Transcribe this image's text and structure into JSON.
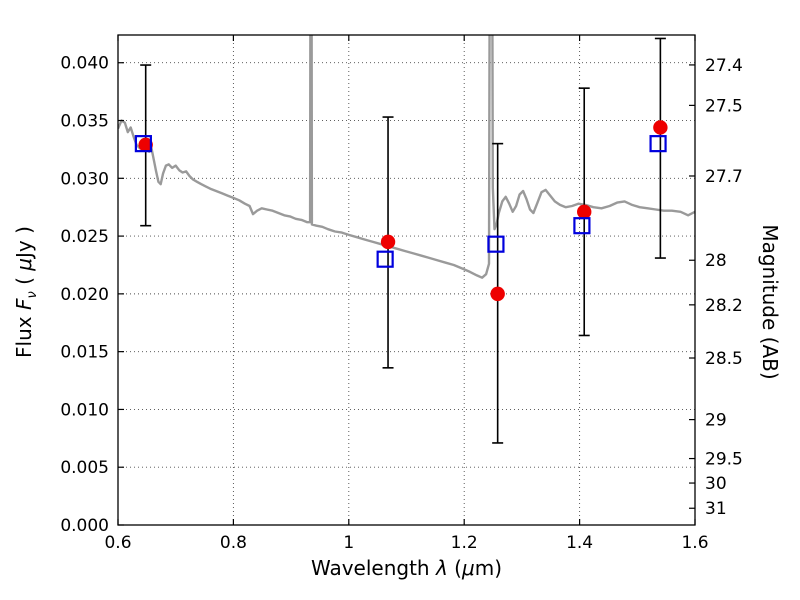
{
  "chart_data": {
    "type": "line",
    "title": "",
    "xlabel": "Wavelength λ (μm)",
    "ylabel": "Flux Fν (μJy)",
    "ylabel_right": "Magnitude (AB)",
    "xlim": [
      0.6,
      1.6
    ],
    "ylim": [
      0,
      0.0424
    ],
    "grid": true,
    "grid_style": "dotted",
    "legend": "none",
    "axis_labels": {
      "x": {
        "pre": "Wavelength  ",
        "sym": "λ",
        "mid": " (",
        "mu": "μ",
        "post": "m)"
      },
      "left": {
        "pre": "Flux  ",
        "sym": "F",
        "sub": "ν",
        "mid": "  ( ",
        "mu": "μ",
        "post": "Jy )"
      },
      "right": "Magnitude (AB)"
    },
    "x_ticks": [
      {
        "v": 0.6,
        "label": "0.6"
      },
      {
        "v": 0.8,
        "label": "0.8"
      },
      {
        "v": 1.0,
        "label": "1"
      },
      {
        "v": 1.2,
        "label": "1.2"
      },
      {
        "v": 1.4,
        "label": "1.4"
      },
      {
        "v": 1.6,
        "label": "1.6"
      }
    ],
    "y_ticks_left": [
      {
        "v": 0.0,
        "label": "0.000"
      },
      {
        "v": 0.005,
        "label": "0.005"
      },
      {
        "v": 0.01,
        "label": "0.010"
      },
      {
        "v": 0.015,
        "label": "0.015"
      },
      {
        "v": 0.02,
        "label": "0.020"
      },
      {
        "v": 0.025,
        "label": "0.025"
      },
      {
        "v": 0.03,
        "label": "0.030"
      },
      {
        "v": 0.035,
        "label": "0.035"
      },
      {
        "v": 0.04,
        "label": "0.040"
      }
    ],
    "y_ticks_right": [
      {
        "flux": 0.03981,
        "label": "27.4"
      },
      {
        "flux": 0.03631,
        "label": "27.5"
      },
      {
        "flux": 0.0302,
        "label": "27.7"
      },
      {
        "flux": 0.02291,
        "label": "28"
      },
      {
        "flux": 0.01905,
        "label": "28.2"
      },
      {
        "flux": 0.01445,
        "label": "28.5"
      },
      {
        "flux": 0.00912,
        "label": "29"
      },
      {
        "flux": 0.00575,
        "label": "29.5"
      },
      {
        "flux": 0.00363,
        "label": "30"
      },
      {
        "flux": 0.00145,
        "label": "31"
      }
    ],
    "colors": {
      "spectrum": "#9a9a9a",
      "observed": "#ee0000",
      "model_marker": "#0000dd",
      "errorbar": "#000000",
      "frame": "#000000",
      "background": "#ffffff"
    },
    "spectrum": {
      "name": "model spectrum",
      "points": [
        [
          0.6,
          0.0343
        ],
        [
          0.606,
          0.035
        ],
        [
          0.612,
          0.0348
        ],
        [
          0.617,
          0.034
        ],
        [
          0.622,
          0.0344
        ],
        [
          0.627,
          0.0336
        ],
        [
          0.632,
          0.0329
        ],
        [
          0.638,
          0.0326
        ],
        [
          0.644,
          0.033
        ],
        [
          0.65,
          0.0329
        ],
        [
          0.654,
          0.0323
        ],
        [
          0.658,
          0.0326
        ],
        [
          0.662,
          0.0316
        ],
        [
          0.666,
          0.0306
        ],
        [
          0.67,
          0.0297
        ],
        [
          0.674,
          0.0295
        ],
        [
          0.678,
          0.0304
        ],
        [
          0.683,
          0.0311
        ],
        [
          0.688,
          0.0312
        ],
        [
          0.694,
          0.0309
        ],
        [
          0.7,
          0.0311
        ],
        [
          0.706,
          0.0307
        ],
        [
          0.712,
          0.0305
        ],
        [
          0.718,
          0.0306
        ],
        [
          0.724,
          0.0302
        ],
        [
          0.73,
          0.0299
        ],
        [
          0.737,
          0.0297
        ],
        [
          0.744,
          0.0295
        ],
        [
          0.752,
          0.0293
        ],
        [
          0.76,
          0.0291
        ],
        [
          0.77,
          0.0289
        ],
        [
          0.78,
          0.0287
        ],
        [
          0.79,
          0.0285
        ],
        [
          0.8,
          0.0283
        ],
        [
          0.81,
          0.0281
        ],
        [
          0.82,
          0.0278
        ],
        [
          0.828,
          0.0276
        ],
        [
          0.834,
          0.0269
        ],
        [
          0.841,
          0.0272
        ],
        [
          0.849,
          0.0274
        ],
        [
          0.858,
          0.0273
        ],
        [
          0.868,
          0.0272
        ],
        [
          0.878,
          0.027
        ],
        [
          0.888,
          0.0268
        ],
        [
          0.898,
          0.0267
        ],
        [
          0.908,
          0.0265
        ],
        [
          0.918,
          0.0264
        ],
        [
          0.928,
          0.0262
        ],
        [
          0.933,
          0.0262
        ],
        [
          0.9345,
          0.085
        ],
        [
          0.936,
          0.026
        ],
        [
          0.944,
          0.0259
        ],
        [
          0.954,
          0.0258
        ],
        [
          0.964,
          0.0256
        ],
        [
          0.976,
          0.0254
        ],
        [
          0.988,
          0.0253
        ],
        [
          1.0,
          0.0251
        ],
        [
          1.014,
          0.0249
        ],
        [
          1.028,
          0.0247
        ],
        [
          1.042,
          0.0245
        ],
        [
          1.056,
          0.0243
        ],
        [
          1.07,
          0.0241
        ],
        [
          1.084,
          0.0239
        ],
        [
          1.098,
          0.0237
        ],
        [
          1.112,
          0.0235
        ],
        [
          1.126,
          0.0233
        ],
        [
          1.14,
          0.0231
        ],
        [
          1.154,
          0.0229
        ],
        [
          1.168,
          0.0227
        ],
        [
          1.182,
          0.0225
        ],
        [
          1.196,
          0.0222
        ],
        [
          1.21,
          0.0219
        ],
        [
          1.222,
          0.0216
        ],
        [
          1.231,
          0.0214
        ],
        [
          1.238,
          0.0217
        ],
        [
          1.243,
          0.0226
        ],
        [
          1.2465,
          0.095
        ],
        [
          1.2495,
          0.0292
        ],
        [
          1.2525,
          0.0256
        ],
        [
          1.256,
          0.026
        ],
        [
          1.26,
          0.027
        ],
        [
          1.266,
          0.028
        ],
        [
          1.272,
          0.0284
        ],
        [
          1.278,
          0.0278
        ],
        [
          1.284,
          0.0271
        ],
        [
          1.29,
          0.0276
        ],
        [
          1.296,
          0.0286
        ],
        [
          1.302,
          0.0289
        ],
        [
          1.308,
          0.0282
        ],
        [
          1.314,
          0.0273
        ],
        [
          1.32,
          0.027
        ],
        [
          1.327,
          0.0279
        ],
        [
          1.334,
          0.0288
        ],
        [
          1.341,
          0.029
        ],
        [
          1.349,
          0.0285
        ],
        [
          1.357,
          0.028
        ],
        [
          1.366,
          0.0277
        ],
        [
          1.376,
          0.0275
        ],
        [
          1.387,
          0.0276
        ],
        [
          1.398,
          0.0278
        ],
        [
          1.41,
          0.0277
        ],
        [
          1.424,
          0.0275
        ],
        [
          1.438,
          0.0274
        ],
        [
          1.452,
          0.0276
        ],
        [
          1.465,
          0.0279
        ],
        [
          1.478,
          0.028
        ],
        [
          1.491,
          0.0277
        ],
        [
          1.504,
          0.0275
        ],
        [
          1.518,
          0.0274
        ],
        [
          1.532,
          0.0273
        ],
        [
          1.546,
          0.0272
        ],
        [
          1.56,
          0.0272
        ],
        [
          1.575,
          0.0271
        ],
        [
          1.588,
          0.0268
        ],
        [
          1.6,
          0.0271
        ]
      ]
    },
    "observed": {
      "name": "observed photometry",
      "marker": "filled-circle",
      "points": [
        {
          "x": 0.648,
          "y": 0.0329,
          "y_lo": 0.0259,
          "y_hi": 0.0398
        },
        {
          "x": 1.068,
          "y": 0.0245,
          "y_lo": 0.0136,
          "y_hi": 0.0353
        },
        {
          "x": 1.258,
          "y": 0.02,
          "y_lo": 0.0071,
          "y_hi": 0.033
        },
        {
          "x": 1.408,
          "y": 0.0271,
          "y_lo": 0.0164,
          "y_hi": 0.0378
        },
        {
          "x": 1.54,
          "y": 0.0344,
          "y_lo": 0.0231,
          "y_hi": 0.0421
        }
      ]
    },
    "model_photometry": {
      "name": "model photometry",
      "marker": "open-square",
      "points": [
        {
          "x": 0.644,
          "y": 0.033
        },
        {
          "x": 1.063,
          "y": 0.023
        },
        {
          "x": 1.255,
          "y": 0.0243
        },
        {
          "x": 1.404,
          "y": 0.0259
        },
        {
          "x": 1.536,
          "y": 0.033
        }
      ]
    }
  }
}
